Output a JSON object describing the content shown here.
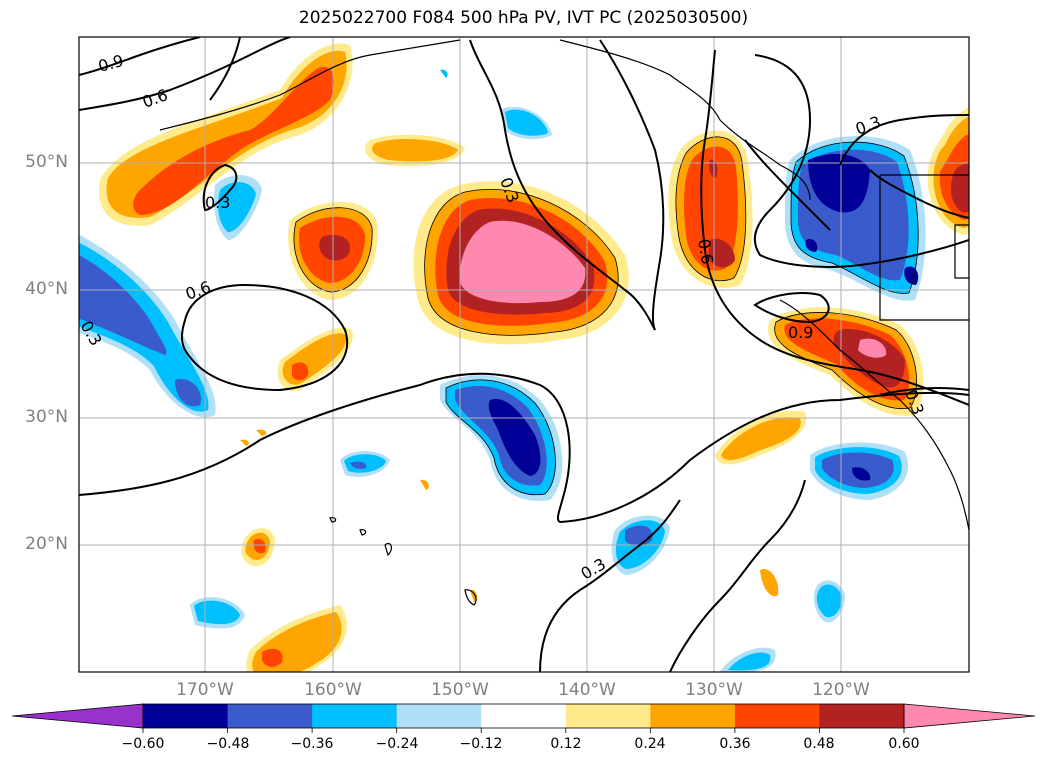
{
  "title": "2025022700 F084 500 hPa PV, IVT PC (2025030500)",
  "map": {
    "lat_labels": [
      "50°N",
      "40°N",
      "30°N",
      "20°N"
    ],
    "lon_labels": [
      "170°W",
      "160°W",
      "150°W",
      "140°W",
      "130°W",
      "120°W"
    ],
    "contour_labels": [
      "0.9",
      "0.6",
      "0.3",
      "0.3",
      "0.6",
      "0.3",
      "0.6",
      "0.3",
      "0.9",
      "0.3",
      "0.3"
    ],
    "contour_color": "#000000",
    "grid_color": "#b0b0b0",
    "colors": {
      "neg060": "#000096",
      "neg048": "#3a5bcc",
      "neg036": "#00bfff",
      "neg024": "#b0e0f8",
      "pos024": "#ffeb8c",
      "pos036": "#ffa500",
      "pos048": "#ff4500",
      "pos060": "#b22222",
      "pos072": "#ff88b0"
    }
  },
  "colorbar": {
    "labels": [
      "−0.60",
      "−0.48",
      "−0.36",
      "−0.24",
      "−0.12",
      "0.12",
      "0.24",
      "0.36",
      "0.48",
      "0.60"
    ],
    "under_color": "#9932cc",
    "over_color": "#ff88b0",
    "segment_colors": [
      "#000096",
      "#3a5bcc",
      "#00bfff",
      "#b0e0f8",
      "#ffffff",
      "#ffeb8c",
      "#ffa500",
      "#ff4500",
      "#b22222"
    ]
  }
}
